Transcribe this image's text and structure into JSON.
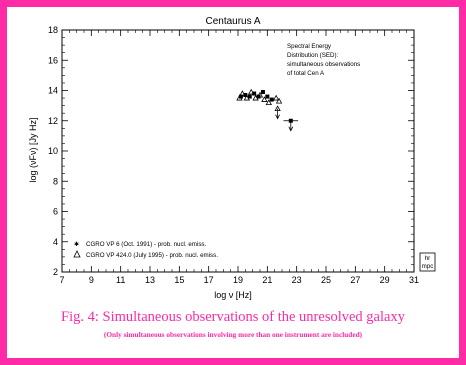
{
  "caption": {
    "main": "Fig. 4: Simultaneous observations of the unresolved galaxy",
    "sub": "(Only simultaneous observations involving more than one instrument are included)"
  },
  "colors": {
    "frame": "#ff2aa6",
    "caption": "#ff2aa6",
    "plot": "#000000"
  },
  "chart_data": {
    "type": "scatter",
    "title": "Centaurus A",
    "xlabel": "log ν [Hz]",
    "ylabel": "log (νFν) [Jy Hz]",
    "xlim": [
      7,
      31
    ],
    "ylim": [
      2,
      18
    ],
    "xticks": [
      "7",
      "9",
      "11",
      "13",
      "15",
      "17",
      "19",
      "21",
      "23",
      "25",
      "27",
      "29",
      "31"
    ],
    "yticks": [
      "2",
      "4",
      "6",
      "8",
      "10",
      "12",
      "14",
      "16",
      "18"
    ],
    "annotation": [
      "Spectral Energy",
      "Distribution (SED):",
      "simultaneous observations",
      "of total Cen A"
    ],
    "logo": [
      "hr",
      "mpc"
    ],
    "legend_position": "bottom-left",
    "series": [
      {
        "name": "CGRO VP 6 (Oct. 1991) - prob. nucl. emiss.",
        "marker": "asterisk",
        "points": [
          {
            "x": 19.2,
            "y": 13.6
          },
          {
            "x": 19.5,
            "y": 13.7
          },
          {
            "x": 19.8,
            "y": 13.6
          },
          {
            "x": 20.1,
            "y": 13.8
          },
          {
            "x": 20.4,
            "y": 13.6
          },
          {
            "x": 20.7,
            "y": 13.9
          },
          {
            "x": 21.0,
            "y": 13.6
          },
          {
            "x": 21.3,
            "y": 13.4
          },
          {
            "x": 22.6,
            "y": 12.0,
            "xerr": 0.5,
            "arrow": "down"
          }
        ]
      },
      {
        "name": "CGRO VP 424.0 (July 1995) - prob. nucl. emiss.",
        "marker": "triangle",
        "points": [
          {
            "x": 19.1,
            "y": 13.5
          },
          {
            "x": 19.3,
            "y": 13.8
          },
          {
            "x": 19.6,
            "y": 13.5
          },
          {
            "x": 19.9,
            "y": 13.9
          },
          {
            "x": 20.2,
            "y": 13.5
          },
          {
            "x": 20.5,
            "y": 13.7
          },
          {
            "x": 20.8,
            "y": 13.4
          },
          {
            "x": 21.1,
            "y": 13.2
          },
          {
            "x": 21.6,
            "y": 13.5
          },
          {
            "x": 21.8,
            "y": 13.3
          },
          {
            "x": 21.7,
            "y": 12.8,
            "arrow": "down"
          }
        ]
      }
    ]
  }
}
